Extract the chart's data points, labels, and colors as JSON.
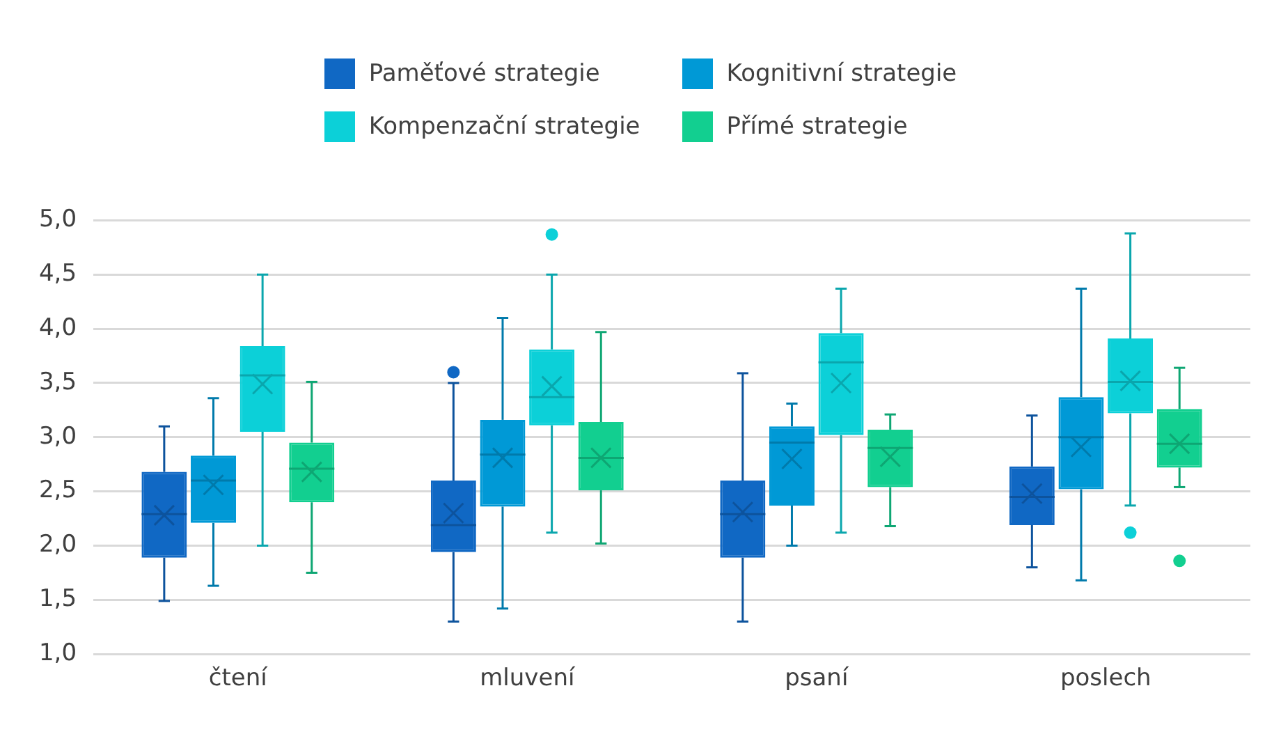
{
  "chart_data": {
    "type": "box",
    "categories": [
      "čtení",
      "mluvení",
      "psaní",
      "poslech"
    ],
    "ylim": [
      1,
      5
    ],
    "yticks": [
      {
        "value": 1,
        "label": "1,0"
      },
      {
        "value": 1.5,
        "label": "1,5"
      },
      {
        "value": 2,
        "label": "2,0"
      },
      {
        "value": 2.5,
        "label": "2,5"
      },
      {
        "value": 3,
        "label": "3,0"
      },
      {
        "value": 3.5,
        "label": "3,5"
      },
      {
        "value": 4,
        "label": "4,0"
      },
      {
        "value": 4.5,
        "label": "4,5"
      },
      {
        "value": 5,
        "label": "5,0"
      }
    ],
    "grid": "y",
    "legend": "top",
    "series": [
      {
        "name": "Paměťové strategie",
        "color": "#1068c4",
        "boxes": [
          {
            "low": 1.49,
            "q1": 1.89,
            "median": 2.29,
            "q3": 2.68,
            "high": 3.1,
            "mean": 2.28
          },
          {
            "low": 1.3,
            "q1": 1.94,
            "median": 2.19,
            "q3": 2.6,
            "high": 3.5,
            "mean": 2.3,
            "outliers": [
              3.6
            ]
          },
          {
            "low": 1.3,
            "q1": 1.89,
            "median": 2.29,
            "q3": 2.6,
            "high": 3.59,
            "mean": 2.31
          },
          {
            "low": 1.8,
            "q1": 2.19,
            "median": 2.45,
            "q3": 2.73,
            "high": 3.2,
            "mean": 2.48
          }
        ]
      },
      {
        "name": "Kognitivní strategie",
        "color": "#0099d6",
        "boxes": [
          {
            "low": 1.63,
            "q1": 2.21,
            "median": 2.6,
            "q3": 2.83,
            "high": 3.36,
            "mean": 2.56
          },
          {
            "low": 1.42,
            "q1": 2.36,
            "median": 2.84,
            "q3": 3.16,
            "high": 4.1,
            "mean": 2.81
          },
          {
            "low": 2.0,
            "q1": 2.37,
            "median": 2.95,
            "q3": 3.1,
            "high": 3.31,
            "mean": 2.8
          },
          {
            "low": 1.68,
            "q1": 2.52,
            "median": 3.0,
            "q3": 3.37,
            "high": 4.37,
            "mean": 2.91
          }
        ]
      },
      {
        "name": "Kompenzační strategie",
        "color": "#0cd0d8",
        "boxes": [
          {
            "low": 2.0,
            "q1": 3.05,
            "median": 3.57,
            "q3": 3.84,
            "high": 4.5,
            "mean": 3.49
          },
          {
            "low": 2.12,
            "q1": 3.11,
            "median": 3.37,
            "q3": 3.81,
            "high": 4.5,
            "mean": 3.47,
            "outliers": [
              4.87
            ]
          },
          {
            "low": 2.12,
            "q1": 3.02,
            "median": 3.69,
            "q3": 3.96,
            "high": 4.37,
            "mean": 3.5
          },
          {
            "low": 2.37,
            "q1": 3.22,
            "median": 3.51,
            "q3": 3.91,
            "high": 4.88,
            "mean": 3.52,
            "outliers": [
              2.12
            ]
          }
        ]
      },
      {
        "name": "Přímé strategie",
        "color": "#12cf90",
        "boxes": [
          {
            "low": 1.75,
            "q1": 2.4,
            "median": 2.71,
            "q3": 2.95,
            "high": 3.51,
            "mean": 2.68
          },
          {
            "low": 2.02,
            "q1": 2.51,
            "median": 2.81,
            "q3": 3.14,
            "high": 3.97,
            "mean": 2.81
          },
          {
            "low": 2.18,
            "q1": 2.54,
            "median": 2.9,
            "q3": 3.07,
            "high": 3.21,
            "mean": 2.82
          },
          {
            "low": 2.54,
            "q1": 2.72,
            "median": 2.94,
            "q3": 3.26,
            "high": 3.64,
            "mean": 2.94,
            "outliers": [
              1.86
            ]
          }
        ]
      }
    ]
  }
}
